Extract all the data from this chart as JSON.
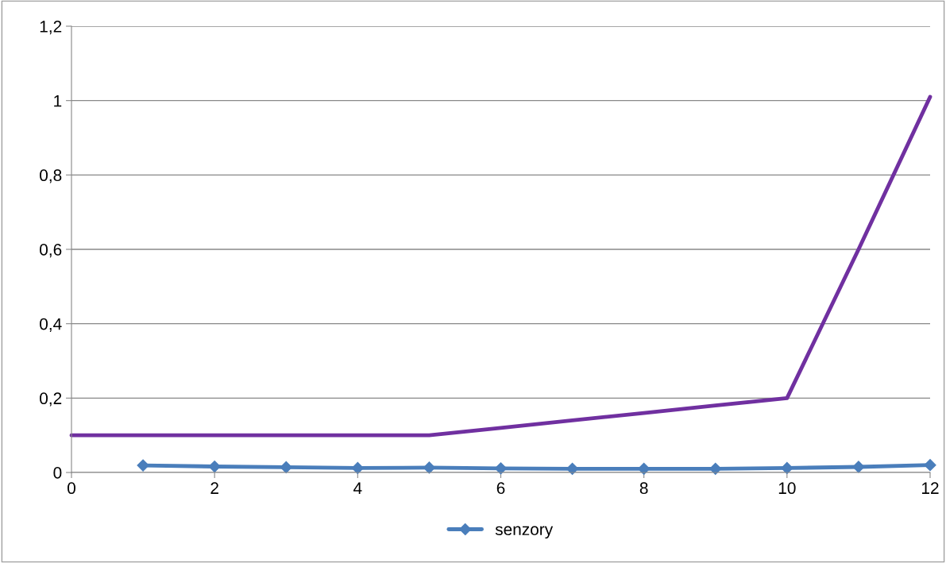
{
  "chart_data": {
    "type": "line",
    "x": [
      0,
      1,
      2,
      3,
      4,
      5,
      6,
      7,
      8,
      9,
      10,
      11,
      12
    ],
    "series": [
      {
        "name": "senzory",
        "color": "#4a7ebb",
        "marker": "diamond",
        "x": [
          1,
          2,
          3,
          4,
          5,
          6,
          7,
          8,
          9,
          10,
          11,
          12
        ],
        "values": [
          0.019,
          0.016,
          0.014,
          0.012,
          0.013,
          0.011,
          0.01,
          0.01,
          0.01,
          0.012,
          0.015,
          0.02
        ]
      },
      {
        "color": "#7030a0",
        "marker": "none",
        "values": [
          0.1,
          0.1,
          0.1,
          0.1,
          0.1,
          0.1,
          0.12,
          0.14,
          0.16,
          0.18,
          0.2,
          0.6,
          1.01
        ]
      }
    ],
    "xlim": [
      0,
      12
    ],
    "xticks": [
      0,
      2,
      4,
      6,
      8,
      10,
      12
    ],
    "ylim": [
      0,
      1.2
    ],
    "yticks": [
      0,
      {
        "value": 0.2,
        "label": "0,2"
      },
      {
        "value": 0.4,
        "label": "0,4"
      },
      {
        "value": 0.6,
        "label": "0,6"
      },
      {
        "value": 0.8,
        "label": "0,8"
      },
      1,
      {
        "value": 1.2,
        "label": "1,2"
      }
    ],
    "grid": "y",
    "legend": "bottom",
    "line_style": "solid"
  }
}
